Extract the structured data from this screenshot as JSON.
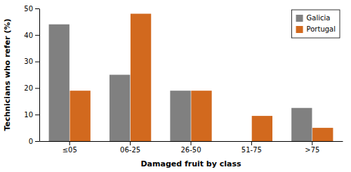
{
  "chart_data": {
    "type": "bar",
    "categories": [
      "≤05",
      "06-25",
      "26-50",
      "51-75",
      ">75"
    ],
    "series": [
      {
        "name": "Galicia",
        "color": "#808080",
        "values": [
          44.0,
          25.0,
          19.0,
          0,
          12.5
        ]
      },
      {
        "name": "Portugal",
        "color": "#D2691E",
        "values": [
          19.0,
          48.0,
          19.0,
          9.5,
          5.0
        ]
      }
    ],
    "xlabel": "Damaged fruit by class",
    "ylabel": "Technicians who refer (%)",
    "ylim": [
      0,
      50
    ],
    "yticks": [
      0,
      10,
      20,
      30,
      40,
      50
    ],
    "legend": "upper right",
    "grid": false
  }
}
